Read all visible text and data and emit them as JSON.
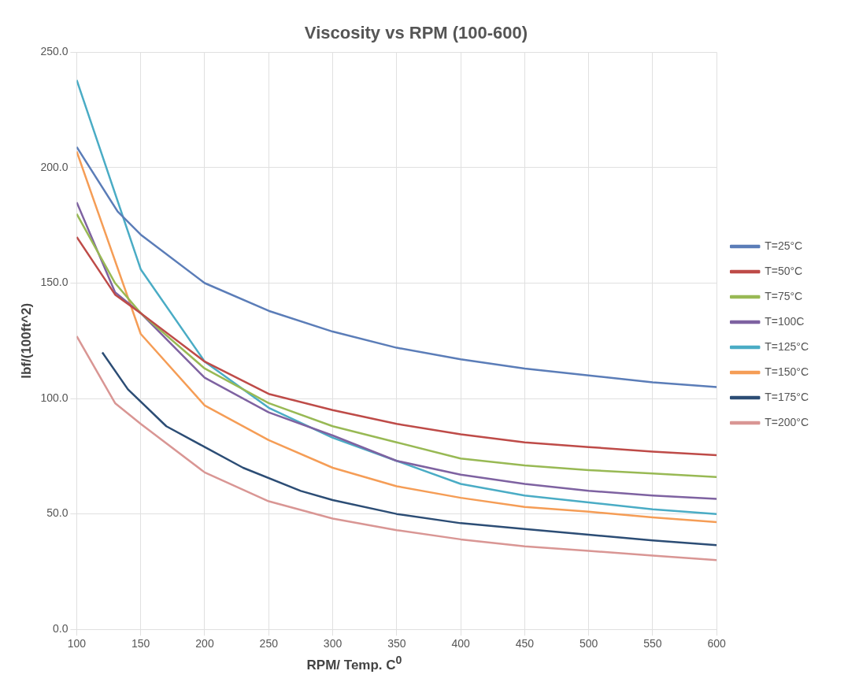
{
  "chart_data": {
    "type": "line",
    "title": "Viscosity vs RPM (100-600)",
    "xlabel": "RPM/ Temp. C$^{0}$",
    "ylabel": "lbf/(100ft^2)",
    "xlim": [
      100,
      600
    ],
    "xticks": [
      100,
      150,
      200,
      250,
      300,
      350,
      400,
      450,
      500,
      550,
      600
    ],
    "ylim": [
      0,
      250
    ],
    "yticks": [
      {
        "value": 0,
        "label": "0.0"
      },
      {
        "value": 50,
        "label": "50.0"
      },
      {
        "value": 100,
        "label": "100.0"
      },
      {
        "value": 150,
        "label": "150.0"
      },
      {
        "value": 200,
        "label": "200.0"
      },
      {
        "value": 250,
        "label": "250.0"
      }
    ],
    "grid": true,
    "legend": "right",
    "marker": "none",
    "line_style": "solid",
    "series": [
      {
        "name": "T=25°C",
        "color": "#5b7db8",
        "x": [
          100,
          132,
          150,
          200,
          250,
          300,
          350,
          400,
          450,
          500,
          550,
          600
        ],
        "values": [
          209,
          181,
          171,
          150,
          138,
          129,
          122,
          117,
          113,
          110,
          107,
          105
        ]
      },
      {
        "name": "T=50°C",
        "color": "#be4b48",
        "x": [
          100,
          130,
          150,
          200,
          250,
          300,
          350,
          400,
          450,
          500,
          550,
          600
        ],
        "values": [
          170,
          145,
          137,
          116,
          102,
          95,
          89,
          84.5,
          81,
          79,
          77,
          75.5
        ]
      },
      {
        "name": "T=75°C",
        "color": "#98b954",
        "x": [
          100,
          130,
          150,
          200,
          250,
          300,
          350,
          400,
          450,
          500,
          550,
          600
        ],
        "values": [
          180,
          150,
          137,
          113,
          98,
          88,
          81,
          74,
          71,
          69,
          67.5,
          66
        ]
      },
      {
        "name": "T=100C",
        "color": "#7e62a1",
        "x": [
          100,
          130,
          150,
          200,
          250,
          300,
          350,
          400,
          450,
          500,
          550,
          600
        ],
        "values": [
          185,
          146,
          137,
          109,
          94,
          84,
          73,
          67,
          63,
          60,
          58,
          56.5
        ]
      },
      {
        "name": "T=125°C",
        "color": "#4aacc5",
        "x": [
          100,
          150,
          200,
          250,
          300,
          350,
          400,
          450,
          500,
          550,
          600
        ],
        "values": [
          238,
          156,
          116,
          96,
          83,
          73,
          63,
          58,
          55,
          52,
          50
        ]
      },
      {
        "name": "T=150°C",
        "color": "#f59d56",
        "x": [
          100,
          150,
          200,
          250,
          300,
          350,
          400,
          450,
          500,
          550,
          600
        ],
        "values": [
          207,
          128,
          97,
          82,
          70,
          62,
          57,
          53,
          51,
          48.5,
          46.5
        ]
      },
      {
        "name": "T=175°C",
        "color": "#2c4d75",
        "x": [
          120,
          140,
          170,
          200,
          230,
          275,
          300,
          350,
          400,
          450,
          500,
          550,
          600
        ],
        "values": [
          120,
          104,
          88,
          79,
          70,
          60,
          56,
          50,
          46,
          43.5,
          41,
          38.5,
          36.5
        ]
      },
      {
        "name": "T=200°C",
        "color": "#d99694",
        "x": [
          100,
          130,
          150,
          200,
          250,
          300,
          350,
          400,
          450,
          500,
          550,
          600
        ],
        "values": [
          127,
          98,
          89,
          68,
          55.5,
          48,
          43,
          39,
          36,
          34,
          32,
          30
        ]
      }
    ]
  }
}
